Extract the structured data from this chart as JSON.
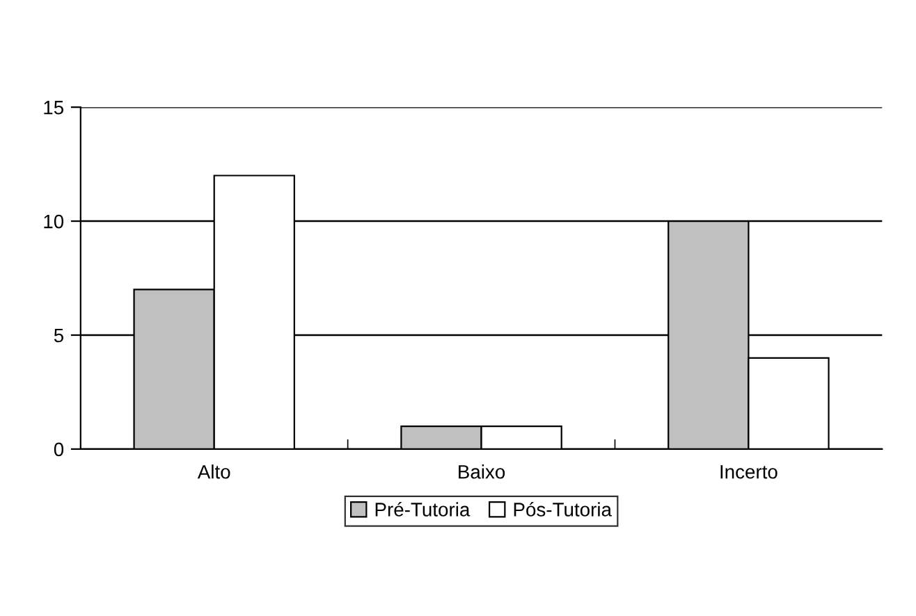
{
  "chart_data": {
    "type": "bar",
    "categories": [
      "Alto",
      "Baixo",
      "Incerto"
    ],
    "series": [
      {
        "name": "Pré-Tutoria",
        "color": "#c0c0c0",
        "values": [
          7,
          1,
          10
        ]
      },
      {
        "name": "Pós-Tutoria",
        "color": "#ffffff",
        "values": [
          12,
          1,
          4
        ]
      }
    ],
    "ylim": [
      0,
      15
    ],
    "yticks": [
      0,
      5,
      10,
      15
    ],
    "grid": "y",
    "legend": "bottom"
  }
}
